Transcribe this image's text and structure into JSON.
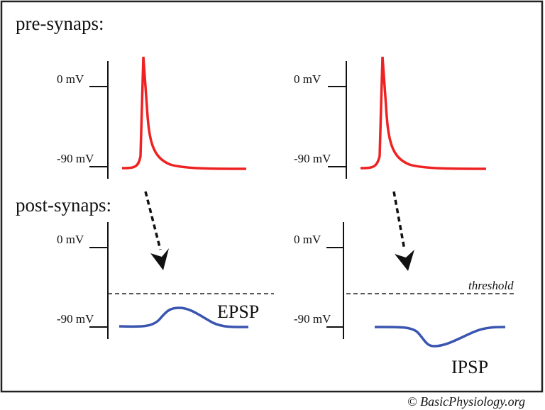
{
  "sections": {
    "pre": "pre-synaps:",
    "post": "post-synaps:"
  },
  "axis_labels": {
    "top": "0 mV",
    "bottom": "-90 mV"
  },
  "threshold_label": "threshold",
  "epsp_label": "EPSP",
  "ipsp_label": "IPSP",
  "copyright": "© BasicPhysiology.org",
  "colors": {
    "action_potential": "#ee2222",
    "postsynaptic": "#3a55b0",
    "axes": "#111111"
  }
}
